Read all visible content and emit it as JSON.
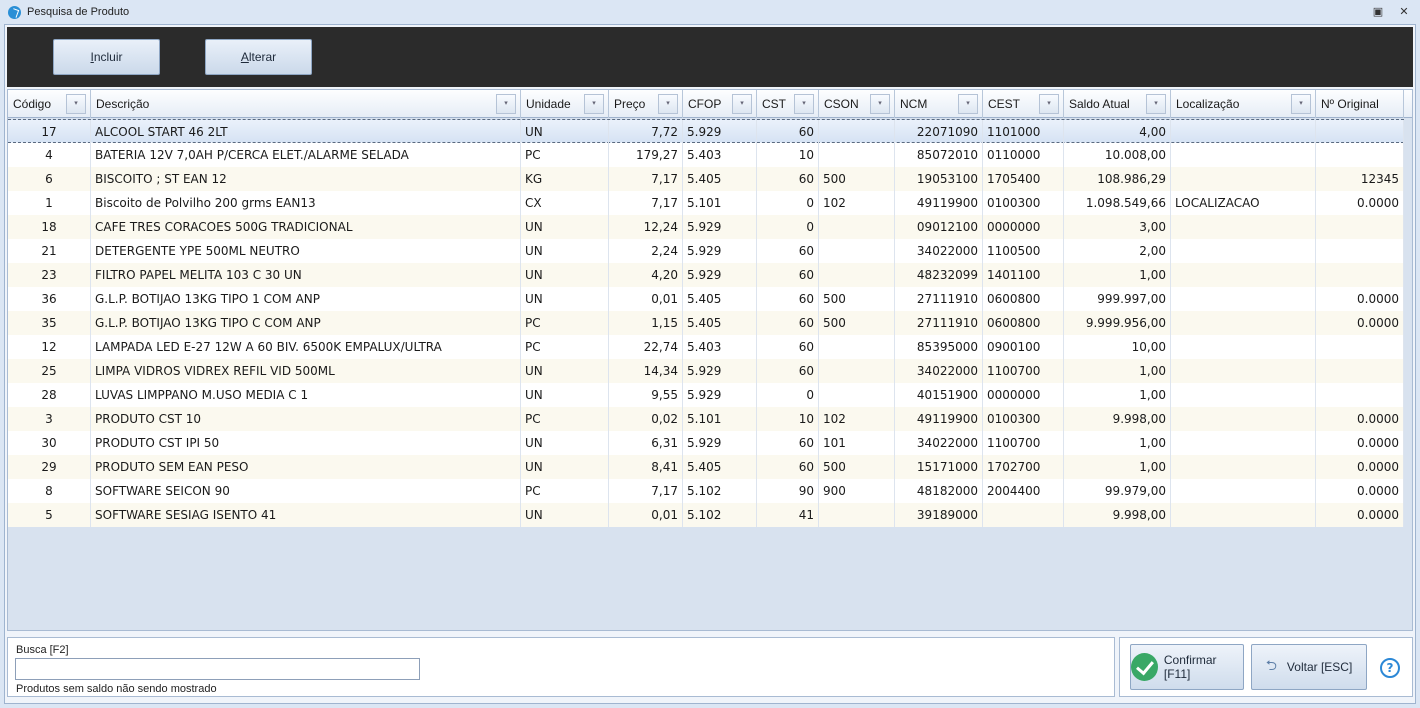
{
  "window": {
    "title": "Pesquisa de Produto"
  },
  "toolbar": {
    "incluir_label": "Incluir",
    "alterar_label": "Alterar"
  },
  "grid": {
    "columns": [
      "Código",
      "Descrição",
      "Unidade",
      "Preço",
      "CFOP",
      "CST",
      "CSON",
      "NCM",
      "CEST",
      "Saldo Atual",
      "Localização",
      "Nº Original"
    ],
    "rows": [
      [
        "17",
        "ALCOOL START 46 2LT",
        "UN",
        "7,72",
        "5.929",
        "60",
        "",
        "22071090",
        "1101000",
        "4,00",
        "",
        ""
      ],
      [
        "4",
        "BATERIA 12V 7,0AH P/CERCA ELET./ALARME SELADA",
        "PC",
        "179,27",
        "5.403",
        "10",
        "",
        "85072010",
        "0110000",
        "10.008,00",
        "",
        ""
      ],
      [
        "6",
        "BISCOITO ; ST EAN 12",
        "KG",
        "7,17",
        "5.405",
        "60",
        "500",
        "19053100",
        "1705400",
        "108.986,29",
        "",
        "12345"
      ],
      [
        "1",
        "Biscoito de Polvilho 200 grms EAN13",
        "CX",
        "7,17",
        "5.101",
        "0",
        "102",
        "49119900",
        "0100300",
        "1.098.549,66",
        "LOCALIZACAO",
        "0.0000"
      ],
      [
        "18",
        "CAFE TRES CORACOES 500G TRADICIONAL",
        "UN",
        "12,24",
        "5.929",
        "0",
        "",
        "09012100",
        "0000000",
        "3,00",
        "",
        ""
      ],
      [
        "21",
        "DETERGENTE YPE 500ML NEUTRO",
        "UN",
        "2,24",
        "5.929",
        "60",
        "",
        "34022000",
        "1100500",
        "2,00",
        "",
        ""
      ],
      [
        "23",
        "FILTRO PAPEL MELITA 103 C 30 UN",
        "UN",
        "4,20",
        "5.929",
        "60",
        "",
        "48232099",
        "1401100",
        "1,00",
        "",
        ""
      ],
      [
        "36",
        "G.L.P. BOTIJAO 13KG TIPO 1 COM ANP",
        "UN",
        "0,01",
        "5.405",
        "60",
        "500",
        "27111910",
        "0600800",
        "999.997,00",
        "",
        "0.0000"
      ],
      [
        "35",
        "G.L.P. BOTIJAO 13KG TIPO C COM ANP",
        "PC",
        "1,15",
        "5.405",
        "60",
        "500",
        "27111910",
        "0600800",
        "9.999.956,00",
        "",
        "0.0000"
      ],
      [
        "12",
        "LAMPADA LED E-27 12W A 60 BIV. 6500K EMPALUX/ULTRA",
        "PC",
        "22,74",
        "5.403",
        "60",
        "",
        "85395000",
        "0900100",
        "10,00",
        "",
        ""
      ],
      [
        "25",
        "LIMPA VIDROS VIDREX REFIL VID 500ML",
        "UN",
        "14,34",
        "5.929",
        "60",
        "",
        "34022000",
        "1100700",
        "1,00",
        "",
        ""
      ],
      [
        "28",
        "LUVAS LIMPPANO M.USO MEDIA C 1",
        "UN",
        "9,55",
        "5.929",
        "0",
        "",
        "40151900",
        "0000000",
        "1,00",
        "",
        ""
      ],
      [
        "3",
        "PRODUTO CST 10",
        "PC",
        "0,02",
        "5.101",
        "10",
        "102",
        "49119900",
        "0100300",
        "9.998,00",
        "",
        "0.0000"
      ],
      [
        "30",
        "PRODUTO CST IPI 50",
        "UN",
        "6,31",
        "5.929",
        "60",
        "101",
        "34022000",
        "1100700",
        "1,00",
        "",
        "0.0000"
      ],
      [
        "29",
        "PRODUTO SEM EAN PESO",
        "UN",
        "8,41",
        "5.405",
        "60",
        "500",
        "15171000",
        "1702700",
        "1,00",
        "",
        "0.0000"
      ],
      [
        "8",
        "SOFTWARE SEICON 90",
        "PC",
        "7,17",
        "5.102",
        "90",
        "900",
        "48182000",
        "2004400",
        "99.979,00",
        "",
        "0.0000"
      ],
      [
        "5",
        "SOFTWARE SESIAG ISENTO 41",
        "UN",
        "0,01",
        "5.102",
        "41",
        "",
        "39189000",
        "",
        "9.998,00",
        "",
        "0.0000"
      ]
    ]
  },
  "search": {
    "label": "Busca [F2]",
    "value": "",
    "note": "Produtos sem saldo não sendo mostrado"
  },
  "actions": {
    "confirm_label": "Confirmar [F11]",
    "back_label": "Voltar [ESC]"
  },
  "colors": {
    "toolbar_bg": "#2b2b2b",
    "selected_row": "#d6e3f4",
    "confirm_icon": "#39a866",
    "help_icon": "#2c88d6"
  }
}
